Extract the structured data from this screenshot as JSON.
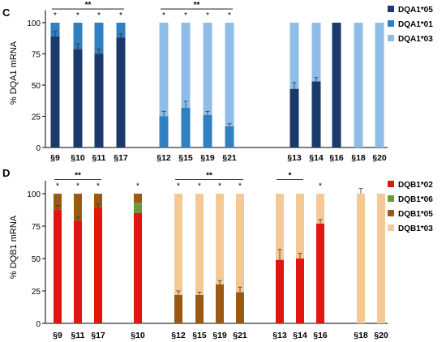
{
  "chart_data": [
    {
      "panel": "C",
      "type": "bar",
      "stacked": true,
      "ylabel": "% DQA1 mRNA",
      "yticks": [
        0,
        25,
        50,
        75,
        100
      ],
      "ylim": [
        0,
        110
      ],
      "grid": false,
      "legend_position": "right",
      "categories": [
        "§9",
        "§10",
        "§11",
        "§17",
        "§12",
        "§15",
        "§19",
        "§21",
        "§13",
        "§14",
        "§16",
        "§18",
        "§20"
      ],
      "group_sizes": [
        4,
        4,
        2,
        3
      ],
      "series": [
        {
          "name": "DQA1*05",
          "color": "#1b3a6b",
          "values": [
            89,
            79,
            75,
            88,
            0,
            0,
            0,
            0,
            47,
            53,
            100,
            0,
            0
          ]
        },
        {
          "name": "DQA1*01",
          "color": "#2f7fc1",
          "values": [
            11,
            21,
            25,
            12,
            25,
            32,
            26,
            17,
            0,
            0,
            0,
            0,
            0
          ]
        },
        {
          "name": "DQA1*03",
          "color": "#8fbde8",
          "values": [
            0,
            0,
            0,
            0,
            75,
            68,
            74,
            83,
            53,
            47,
            0,
            100,
            100
          ]
        }
      ],
      "errors": [
        4,
        4,
        4,
        3,
        4,
        5,
        3,
        2,
        5,
        3,
        0,
        0,
        0
      ],
      "stars": [
        "*",
        "*",
        "*",
        "*",
        "*",
        "*",
        "*",
        "*",
        "",
        "",
        "",
        "",
        ""
      ],
      "brackets": [
        {
          "label": "**",
          "from": 0,
          "to": 3
        },
        {
          "label": "**",
          "from": 4,
          "to": 7
        }
      ]
    },
    {
      "panel": "D",
      "type": "bar",
      "stacked": true,
      "ylabel": "% DQB1 mRNA",
      "yticks": [
        0,
        25,
        50,
        75,
        100
      ],
      "ylim": [
        0,
        110
      ],
      "grid": false,
      "legend_position": "right",
      "categories": [
        "§9",
        "§11",
        "§17",
        "§10",
        "§12",
        "§15",
        "§19",
        "§21",
        "§13",
        "§14",
        "§16",
        "§18",
        "§20"
      ],
      "group_sizes": [
        3,
        1,
        4,
        3,
        2
      ],
      "series": [
        {
          "name": "DQB1*02",
          "color": "#e0160f",
          "values": [
            88,
            79,
            89,
            85,
            0,
            0,
            0,
            0,
            49,
            50,
            77,
            0,
            0
          ]
        },
        {
          "name": "DQB1*06",
          "color": "#6a9a3a",
          "values": [
            0,
            0,
            0,
            8,
            0,
            0,
            0,
            0,
            0,
            0,
            0,
            0,
            0
          ]
        },
        {
          "name": "DQB1*05",
          "color": "#9a5a12",
          "values": [
            12,
            21,
            11,
            7,
            22,
            22,
            30,
            24,
            0,
            0,
            0,
            0,
            0
          ]
        },
        {
          "name": "DQB1*03",
          "color": "#f5c996",
          "values": [
            0,
            0,
            0,
            0,
            78,
            78,
            70,
            76,
            51,
            50,
            23,
            100,
            100
          ]
        }
      ],
      "errors": [
        3,
        3,
        3,
        0,
        3,
        2,
        3,
        4,
        8,
        4,
        3,
        4,
        0
      ],
      "stars": [
        "*",
        "*",
        "*",
        "*",
        "*",
        "*",
        "*",
        "*",
        "",
        "",
        "*",
        "",
        ""
      ],
      "brackets": [
        {
          "label": "**",
          "from": 0,
          "to": 2
        },
        {
          "label": "**",
          "from": 4,
          "to": 7
        },
        {
          "label": "*",
          "from": 8,
          "to": 9
        }
      ]
    }
  ]
}
